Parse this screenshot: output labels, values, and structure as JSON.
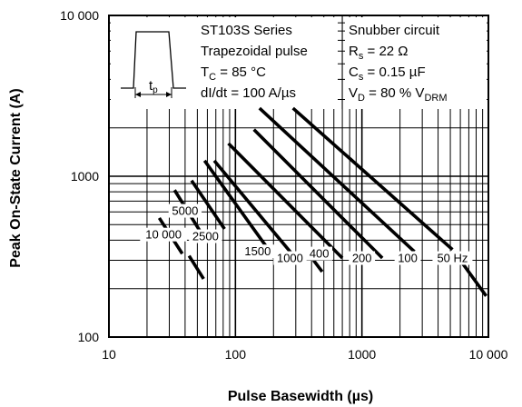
{
  "chart_data": {
    "type": "line",
    "title": "",
    "xlabel": "Pulse Basewidth (µs)",
    "ylabel": "Peak On-State Current (A)",
    "xscale": "log",
    "yscale": "log",
    "xlim": [
      10,
      10000
    ],
    "ylim": [
      100,
      10000
    ],
    "grid": true,
    "xticks": [
      {
        "value": 10,
        "label": "10"
      },
      {
        "value": 100,
        "label": "100"
      },
      {
        "value": 1000,
        "label": "1000"
      },
      {
        "value": 10000,
        "label": "10 000"
      }
    ],
    "yticks": [
      {
        "value": 100,
        "label": "100"
      },
      {
        "value": 1000,
        "label": "1000"
      },
      {
        "value": 10000,
        "label": "10 000"
      }
    ],
    "series": [
      {
        "name": "10 000",
        "x": [
          25,
          38
        ],
        "y": [
          550,
          330
        ]
      },
      {
        "name": "",
        "x": [
          43,
          56
        ],
        "y": [
          320,
          230
        ]
      },
      {
        "name": "5000",
        "x": [
          33,
          55
        ],
        "y": [
          820,
          430
        ]
      },
      {
        "name": "2500",
        "x": [
          45,
          82
        ],
        "y": [
          940,
          470
        ]
      },
      {
        "name": "1500",
        "x": [
          57,
          210
        ],
        "y": [
          1250,
          300
        ]
      },
      {
        "name": "1000",
        "x": [
          68,
          320
        ],
        "y": [
          1250,
          290
        ]
      },
      {
        "name": "",
        "x": [
          415,
          485
        ],
        "y": [
          300,
          255
        ]
      },
      {
        "name": "400",
        "x": [
          88,
          700
        ],
        "y": [
          1600,
          310
        ]
      },
      {
        "name": "200",
        "x": [
          140,
          1450
        ],
        "y": [
          1950,
          310
        ]
      },
      {
        "name": "100",
        "x": [
          155,
          2600
        ],
        "y": [
          2650,
          340
        ]
      },
      {
        "name": "50 Hz",
        "x": [
          285,
          5200
        ],
        "y": [
          2650,
          350
        ]
      },
      {
        "name": "",
        "x": [
          6000,
          9600
        ],
        "y": [
          300,
          180
        ]
      }
    ],
    "inset_waveform": {
      "label": "t",
      "label_sub": "p"
    },
    "annotations": {
      "conditions_left": [
        {
          "text": "ST103S Series",
          "sub": "",
          "tail": ""
        },
        {
          "text": "Trapezoidal pulse",
          "sub": "",
          "tail": ""
        },
        {
          "text": "T",
          "sub": "C",
          "tail": " = 85 °C"
        },
        {
          "text": "dI/dt = 100 A/µs",
          "sub": "",
          "tail": ""
        }
      ],
      "conditions_right": [
        {
          "text": "Snubber circuit",
          "sub": "",
          "tail": ""
        },
        {
          "text": "R",
          "sub": "s",
          "tail": " = 22 Ω"
        },
        {
          "text": "C",
          "sub": "s",
          "tail": " = 0.15 µF"
        },
        {
          "text": "V",
          "sub": "D",
          "tail": " = 80 % V",
          "sub2": "DRM"
        }
      ]
    }
  }
}
